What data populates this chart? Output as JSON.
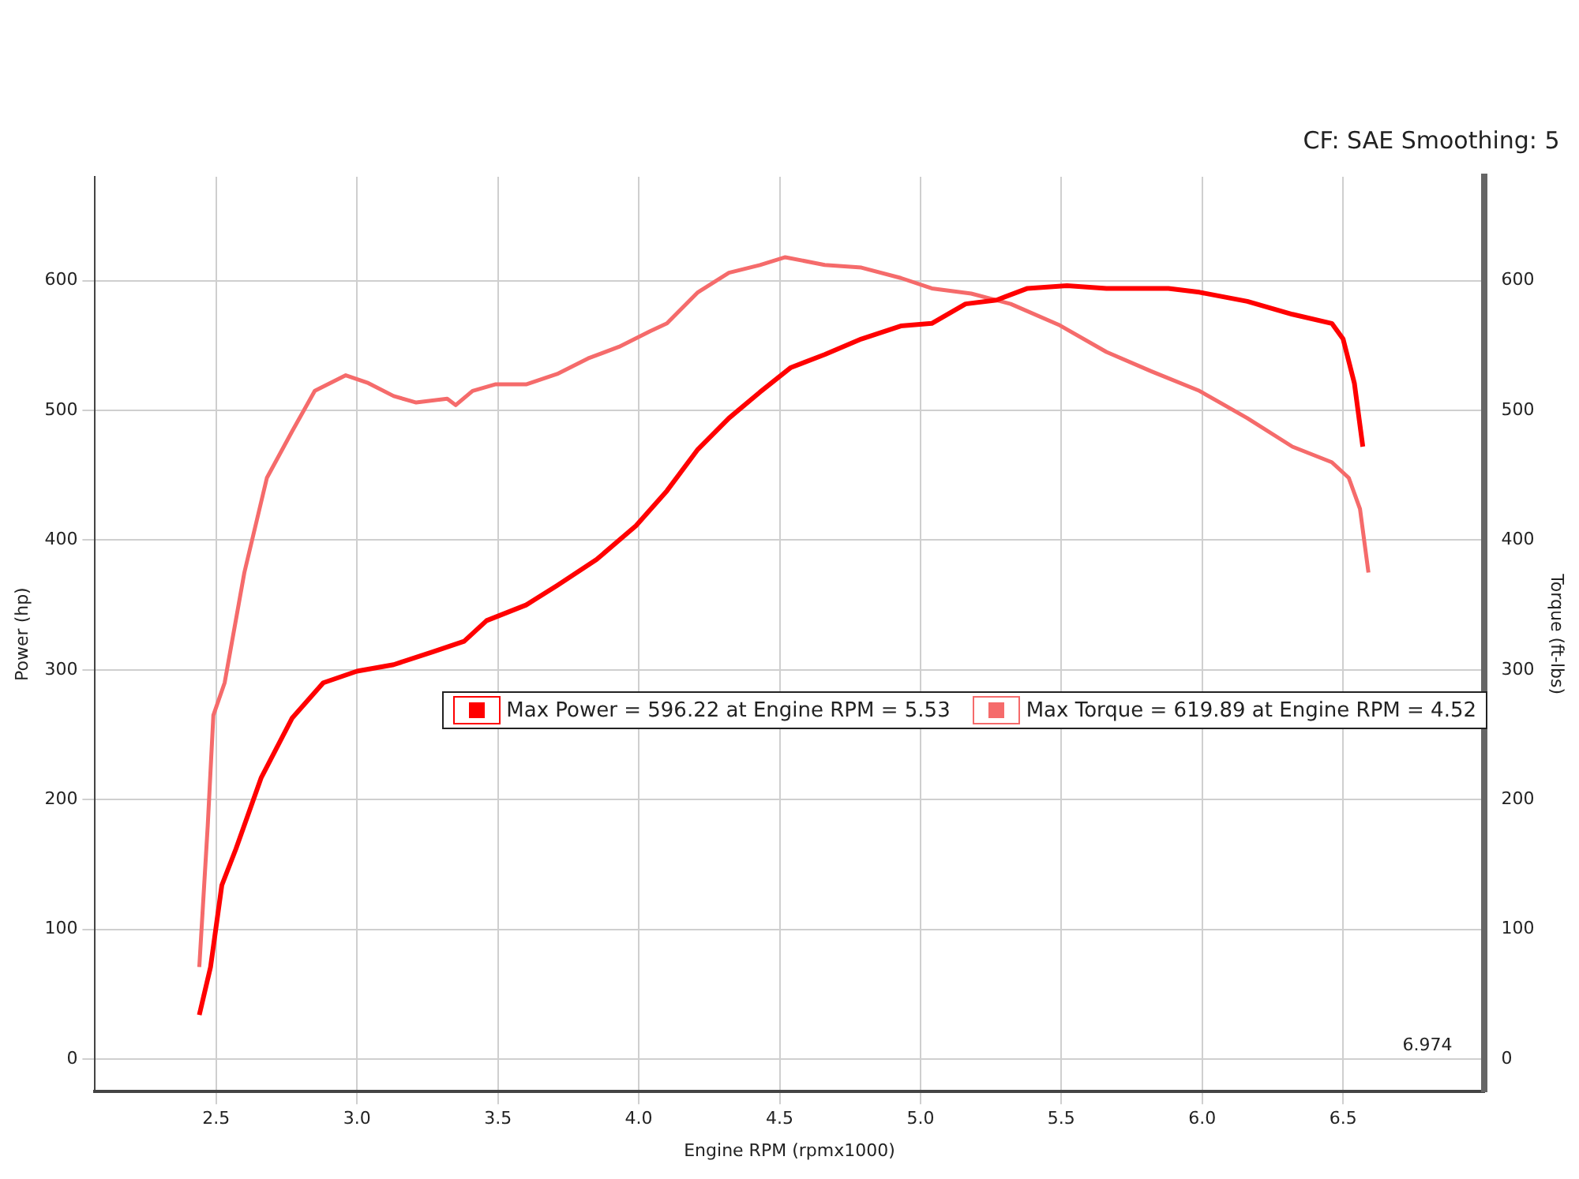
{
  "chart_data": {
    "type": "line",
    "xlabel": "Engine RPM (rpmx1000)",
    "ylabel": "Power (hp)",
    "y2label": "Torque (ft-lbs)",
    "annotations": [
      "CF: SAE Smoothing: 5",
      "6.974"
    ],
    "xlim": [
      2.07,
      7.0
    ],
    "xticks": [
      {
        "value": 2.5,
        "label": "2.5"
      },
      {
        "value": 3,
        "label": "3.0"
      },
      {
        "value": 3.5,
        "label": "3.5"
      },
      {
        "value": 4,
        "label": "4.0"
      },
      {
        "value": 4.5,
        "label": "4.5"
      },
      {
        "value": 5,
        "label": "5.0"
      },
      {
        "value": 5.5,
        "label": "5.5"
      },
      {
        "value": 6,
        "label": "6.0"
      },
      {
        "value": 6.5,
        "label": "6.5"
      }
    ],
    "ylim": [
      -25,
      680
    ],
    "yticks": [
      0,
      100,
      200,
      300,
      400,
      500,
      600
    ],
    "y2lim": [
      -25,
      680
    ],
    "y2ticks": [
      0,
      100,
      200,
      300,
      400,
      500,
      600
    ],
    "grid": true,
    "legend": "right",
    "marker": "none",
    "line_style": "solid",
    "series": [
      {
        "name": "Max Power = 596.22 at Engine RPM = 5.53",
        "color": "#ff0000",
        "x": [
          2.44,
          2.48,
          2.52,
          2.57,
          2.66,
          2.77,
          2.88,
          3.0,
          3.13,
          3.27,
          3.38,
          3.46,
          3.6,
          3.71,
          3.85,
          3.99,
          4.1,
          4.21,
          4.32,
          4.43,
          4.54,
          4.66,
          4.79,
          4.93,
          5.04,
          5.16,
          5.27,
          5.38,
          5.52,
          5.66,
          5.88,
          5.99,
          6.16,
          6.32,
          6.46,
          6.5,
          6.54,
          6.57
        ],
        "values": [
          34,
          71,
          134,
          162,
          217,
          263,
          290,
          299,
          304,
          314,
          322,
          338,
          350,
          365,
          385,
          411,
          438,
          470,
          494,
          514,
          533,
          543,
          555,
          565,
          567,
          582,
          585,
          594,
          596,
          594,
          594,
          591,
          584,
          574,
          567,
          555,
          521,
          472
        ]
      },
      {
        "name": "Max Torque = 619.89 at Engine RPM = 4.52",
        "color": "#f56b6b",
        "axis": "y2",
        "x": [
          2.44,
          2.47,
          2.49,
          2.53,
          2.6,
          2.68,
          2.77,
          2.85,
          2.96,
          3.04,
          3.13,
          3.21,
          3.32,
          3.35,
          3.41,
          3.49,
          3.6,
          3.71,
          3.82,
          3.93,
          4.04,
          4.1,
          4.21,
          4.32,
          4.43,
          4.52,
          4.66,
          4.79,
          4.93,
          5.04,
          5.18,
          5.32,
          5.49,
          5.66,
          5.82,
          5.99,
          6.16,
          6.32,
          6.46,
          6.52,
          6.56,
          6.59
        ],
        "values": [
          71,
          180,
          265,
          290,
          375,
          448,
          484,
          515,
          527,
          521,
          511,
          506,
          509,
          504,
          515,
          520,
          520,
          528,
          540,
          549,
          561,
          567,
          591,
          606,
          612,
          618,
          612,
          610,
          602,
          594,
          590,
          582,
          566,
          545,
          530,
          515,
          494,
          472,
          460,
          448,
          424,
          375
        ]
      }
    ]
  }
}
